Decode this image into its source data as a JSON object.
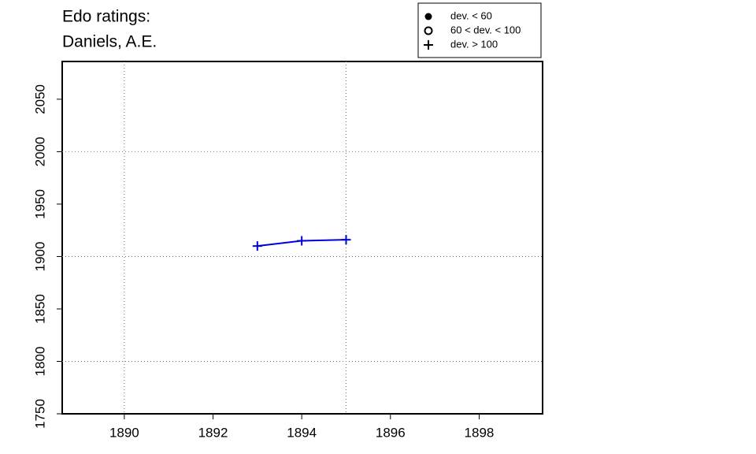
{
  "chart_data": {
    "type": "line",
    "title": [
      "Edo ratings:",
      "Daniels, A.E."
    ],
    "x": [
      1893,
      1894,
      1895
    ],
    "series": [
      {
        "color": "#0000dd",
        "symbol": "plus",
        "values": [
          1910,
          1915,
          1916
        ]
      }
    ],
    "xlim": [
      1888.6,
      1899.43
    ],
    "ylim": [
      1750,
      2086
    ],
    "xticks": [
      1890,
      1892,
      1894,
      1896,
      1898
    ],
    "yticks": [
      1750,
      1800,
      1850,
      1900,
      1950,
      2000,
      2050
    ],
    "xgrid": [
      1890,
      1895
    ],
    "ygrid": [
      1800,
      1900,
      2000
    ],
    "legend_position": "top-right",
    "legend": [
      {
        "label": "dev. < 60",
        "symbol": "filled-circle"
      },
      {
        "label": "60 < dev. < 100",
        "symbol": "open-circle"
      },
      {
        "label": "dev. > 100",
        "symbol": "plus"
      }
    ]
  }
}
